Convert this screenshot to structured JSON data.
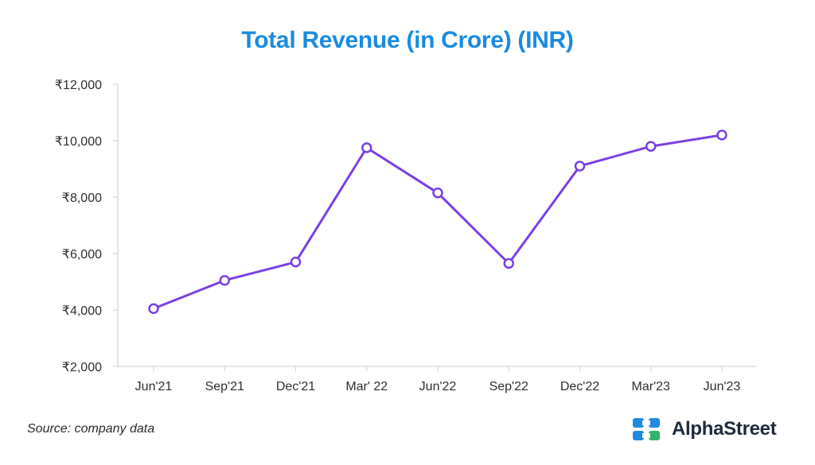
{
  "chart_data": {
    "type": "line",
    "title": "Total Revenue (in Crore) (INR)",
    "xlabel": "",
    "ylabel": "",
    "categories": [
      "Jun'21",
      "Sep'21",
      "Dec'21",
      "Mar' 22",
      "Jun'22",
      "Sep'22",
      "Dec'22",
      "Mar'23",
      "Jun'23"
    ],
    "series": [
      {
        "name": "Total Revenue",
        "values": [
          4050,
          5050,
          5700,
          9750,
          8150,
          5650,
          9100,
          9800,
          10200
        ]
      }
    ],
    "ylim": [
      2000,
      12000
    ],
    "yticks": [
      2000,
      4000,
      6000,
      8000,
      10000,
      12000
    ],
    "ytick_labels": [
      "₹2,000",
      "₹4,000",
      "₹6,000",
      "₹8,000",
      "₹10,000",
      "₹12,000"
    ],
    "grid": false,
    "legend": "none"
  },
  "footer": {
    "source": "Source: company data",
    "brand": "AlphaStreet",
    "brand_logo": "alphastreet-logo-icon"
  },
  "colors": {
    "title": "#1a8be0",
    "line": "#7b3fe4",
    "axis": "#d6d6d6",
    "logo_blue": "#1f8ae0",
    "logo_green": "#34b36a"
  }
}
